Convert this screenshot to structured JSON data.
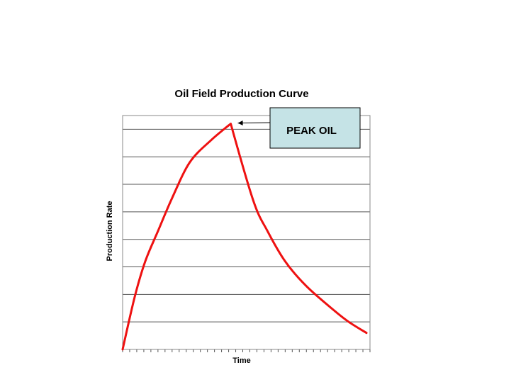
{
  "chart_data": {
    "type": "line",
    "title": "Oil Field Production Curve",
    "xlabel": "Time",
    "ylabel": "Production Rate",
    "xlim": [
      0,
      35
    ],
    "ylim": [
      0,
      8.5
    ],
    "grid": true,
    "x_tick_count": 35,
    "series": [
      {
        "color": "#ee1111",
        "x": [
          0,
          1.7,
          3.2,
          5,
          7,
          9.5,
          12.5,
          15.3,
          18.5,
          20.5,
          23,
          26,
          30,
          32,
          34.5
        ],
        "y": [
          0,
          1.9,
          3.2,
          4.3,
          5.5,
          6.8,
          7.6,
          8.2,
          5.4,
          4.3,
          3.2,
          2.3,
          1.4,
          1.0,
          0.6
        ]
      }
    ],
    "annotations": [
      {
        "text": "PEAK OIL",
        "x": 15.3,
        "y": 8.2,
        "color": "#c5e3e6"
      }
    ]
  }
}
